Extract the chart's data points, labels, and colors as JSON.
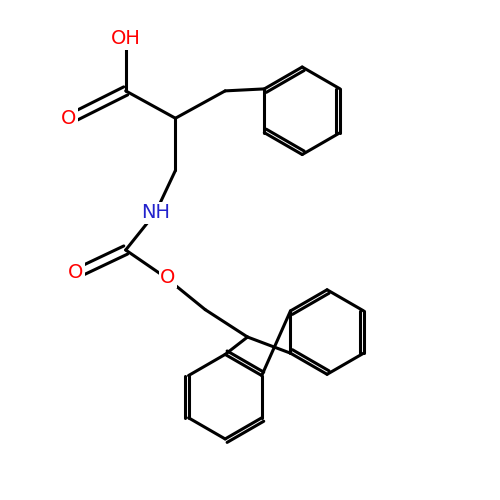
{
  "background_color": "#ffffff",
  "bond_color": "#000000",
  "bond_width": 2.2,
  "atom_colors": {
    "O": "#ff0000",
    "N": "#2222cc",
    "C": "#000000"
  },
  "font_size": 14,
  "figsize": [
    5.0,
    5.0
  ],
  "dpi": 100,
  "xlim": [
    0,
    10
  ],
  "ylim": [
    0,
    10
  ]
}
